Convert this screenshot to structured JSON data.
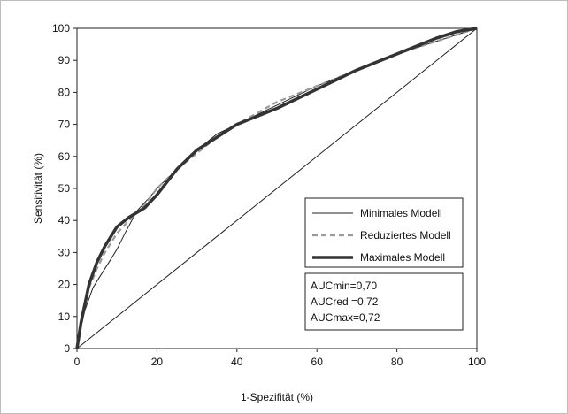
{
  "chart_data": {
    "type": "line",
    "xlabel": "1-Spezifität (%)",
    "ylabel": "Sensitivität (%)",
    "xlim": [
      0,
      100
    ],
    "ylim": [
      0,
      100
    ],
    "x_ticks": [
      "0",
      "20",
      "40",
      "60",
      "80",
      "100"
    ],
    "y_ticks": [
      "0",
      "10",
      "20",
      "30",
      "40",
      "50",
      "60",
      "70",
      "80",
      "90",
      "100"
    ],
    "grid": false,
    "legend_position": "center-right",
    "series": [
      {
        "name": "Minimales Modell",
        "style": "thin-solid",
        "color": "#222222",
        "x": [
          0,
          1,
          2,
          4,
          6,
          8,
          10,
          12,
          15,
          18,
          20,
          25,
          30,
          35,
          40,
          50,
          60,
          70,
          80,
          90,
          95,
          100
        ],
        "y": [
          0,
          7,
          12,
          19,
          23,
          27,
          31,
          36,
          43,
          47,
          50,
          56,
          62,
          67,
          70,
          76,
          82,
          87,
          92,
          96,
          98,
          100
        ]
      },
      {
        "name": "Reduziertes Modell",
        "style": "dashed",
        "color": "#9a9a9a",
        "x": [
          0,
          1,
          2,
          3,
          5,
          7,
          10,
          13,
          17,
          20,
          25,
          30,
          35,
          40,
          50,
          60,
          70,
          80,
          90,
          95,
          100
        ],
        "y": [
          0,
          7,
          13,
          19,
          25,
          30,
          36,
          40,
          45,
          50,
          56,
          61,
          66,
          70,
          77,
          82,
          87,
          92,
          96,
          98,
          100
        ]
      },
      {
        "name": "Maximales Modell",
        "style": "thick-solid",
        "color": "#333333",
        "x": [
          0,
          1,
          2,
          3,
          5,
          7,
          10,
          13,
          17,
          20,
          25,
          30,
          35,
          40,
          50,
          60,
          70,
          80,
          90,
          95,
          100
        ],
        "y": [
          0,
          8,
          14,
          20,
          27,
          32,
          38,
          41,
          44,
          48,
          56,
          62,
          66,
          70,
          75,
          81,
          87,
          92,
          97,
          99,
          100
        ]
      },
      {
        "name": "",
        "style": "diagonal-reference",
        "color": "#222222",
        "x": [
          0,
          100
        ],
        "y": [
          0,
          100
        ]
      }
    ],
    "annotations": [
      "AUCmin=0,70",
      "AUCred =0,72",
      "AUCmax=0,72"
    ]
  }
}
